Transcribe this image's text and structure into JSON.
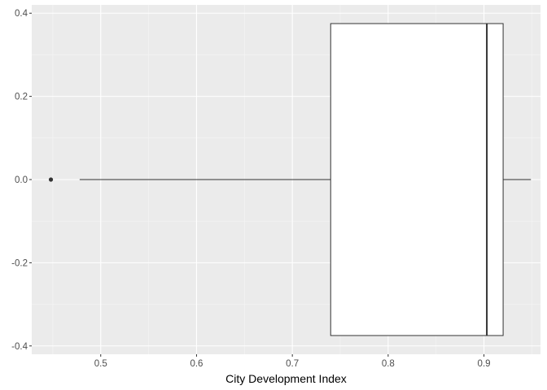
{
  "chart_data": {
    "type": "boxplot",
    "orientation": "horizontal",
    "title": "",
    "xlabel": "City Development Index",
    "ylabel": "",
    "xlim": [
      0.428,
      0.959
    ],
    "ylim": [
      -0.42,
      0.42
    ],
    "x_ticks": [
      0.5,
      0.6,
      0.7,
      0.8,
      0.9
    ],
    "x_tick_labels": [
      "0.5",
      "0.6",
      "0.7",
      "0.8",
      "0.9"
    ],
    "y_ticks": [
      0.4,
      0.2,
      0.0,
      -0.2,
      -0.4
    ],
    "y_tick_labels": [
      "0.4",
      "0.2",
      "0.0",
      "-0.2",
      "-0.4"
    ],
    "box": {
      "whisker_low": 0.478,
      "q1": 0.74,
      "median": 0.903,
      "q3": 0.92,
      "whisker_high": 0.949,
      "half_width": 0.375,
      "outliers": [
        0.448
      ]
    },
    "grid": true,
    "colors": {
      "panel_background": "#ebebeb",
      "grid_major": "#ffffff",
      "grid_minor": "#f5f5f5",
      "box_fill": "#ffffff",
      "box_stroke": "#333333",
      "outlier": "#333333"
    }
  }
}
